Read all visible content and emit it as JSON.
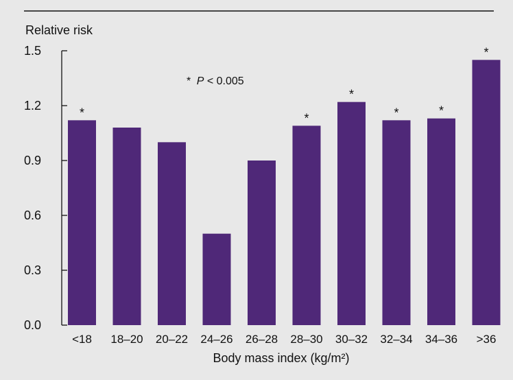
{
  "chart_data": {
    "type": "bar",
    "ylabel": "Relative risk",
    "xlabel": "Body mass index (kg/m²)",
    "annotation": {
      "marker": "*",
      "text_italic": "P",
      "text_rest": " < 0.005"
    },
    "categories": [
      "<18",
      "18–20",
      "20–22",
      "24–26",
      "26–28",
      "28–30",
      "30–32",
      "32–34",
      "34–36",
      ">36"
    ],
    "values": [
      1.12,
      1.08,
      1.0,
      0.5,
      0.9,
      1.09,
      1.22,
      1.12,
      1.13,
      1.45
    ],
    "significant": [
      true,
      false,
      false,
      false,
      false,
      true,
      true,
      true,
      true,
      true
    ],
    "significance_marker": "*",
    "ylim": [
      0,
      1.5
    ],
    "yticks": [
      "0.0",
      "0.3",
      "0.6",
      "0.9",
      "1.2",
      "1.5"
    ],
    "bar_color": "#4f2878",
    "background_color": "#e8e8e8",
    "grid": false,
    "legend": "none"
  }
}
